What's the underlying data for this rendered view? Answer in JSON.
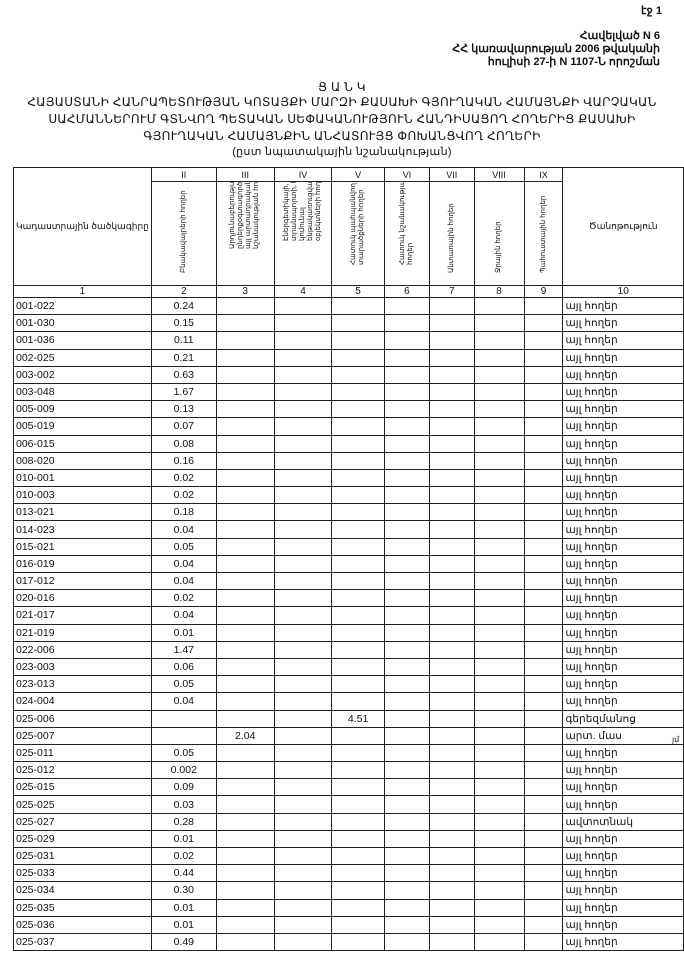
{
  "page_label": "էջ 1",
  "annex": [
    "Հավելված N 6",
    "ՀՀ կառավարության 2006 թվականի",
    "հուլիսի 27-ի N 1107-Ն որոշման"
  ],
  "title": {
    "heading": "Ց Ա Ն Կ",
    "lines": [
      "ՀԱՅԱՍՏԱՆԻ ՀԱՆՐԱՊԵՏՈՒԹՅԱՆ ԿՈՏԱՅՔԻ ՄԱՐԶԻ ՔԱՍԱԽԻ ԳՅՈՒՂԱԿԱՆ ՀԱՄԱՅՆՔԻ ՎԱՐՉԱԿԱՆ",
      "ՍԱՀՄԱՆՆԵՐՈՒՄ ԳՏՆՎՈՂ ՊԵՏԱԿԱՆ ՍԵՓԱԿԱՆՈՒԹՅՈՒՆ ՀԱՆԴԻՍԱՑՈՂ ՀՈՂԵՐԻՑ ՔԱՍԱԽԻ",
      "ԳՅՈՒՂԱԿԱՆ ՀԱՄԱՅՆՔԻՆ ԱՆՀԱՏՈՒՅՑ ՓՈԽԱՆՑՎՈՂ ՀՈՂԵՐԻ"
    ],
    "subtitle": "(ըստ նպատակային նշանակության)"
  },
  "table": {
    "roman": [
      "",
      "II",
      "III",
      "IV",
      "V",
      "VI",
      "VII",
      "VIII",
      "IX",
      ""
    ],
    "headers": [
      "Կադաստրային ծածկագիրը",
      "Բնակավայրերի հողեր",
      "Արդյունաբերության, ընդերքօգտագործման և այլ արտադրական նշանակության հողեր",
      "Էներգետիկայի, տրանսպորտի, կապի, կոմունալ ենթակառուցվածքների օբյեկտների հողեր",
      "Հատուկ պահպանվող տարածքների հողեր",
      "Հատուկ նշանակության հողեր",
      "Անտառային հողեր",
      "Ջրային հողեր",
      "Պահուստային հողեր",
      "Ծանոթություն"
    ],
    "numbers": [
      "1",
      "2",
      "3",
      "4",
      "5",
      "6",
      "7",
      "8",
      "9",
      "10"
    ],
    "rows": [
      [
        "001-022",
        "0.24",
        "",
        "",
        "",
        "",
        "",
        "",
        "",
        "այլ հողեր"
      ],
      [
        "001-030",
        "0.15",
        "",
        "",
        "",
        "",
        "",
        "",
        "",
        "այլ հողեր"
      ],
      [
        "001-036",
        "0.11",
        "",
        "",
        "",
        "",
        "",
        "",
        "",
        "այլ հողեր"
      ],
      [
        "002-025",
        "0.21",
        "",
        "",
        "",
        "",
        "",
        "",
        "",
        "այլ հողեր"
      ],
      [
        "003-002",
        "0.63",
        "",
        "",
        "",
        "",
        "",
        "",
        "",
        "այլ հողեր"
      ],
      [
        "003-048",
        "1.67",
        "",
        "",
        "",
        "",
        "",
        "",
        "",
        "այլ հողեր"
      ],
      [
        "005-009",
        "0.13",
        "",
        "",
        "",
        "",
        "",
        "",
        "",
        "այլ հողեր"
      ],
      [
        "005-019",
        "0.07",
        "",
        "",
        "",
        "",
        "",
        "",
        "",
        "այլ հողեր"
      ],
      [
        "006-015",
        "0.08",
        "",
        "",
        "",
        "",
        "",
        "",
        "",
        "այլ հողեր"
      ],
      [
        "008-020",
        "0.16",
        "",
        "",
        "",
        "",
        "",
        "",
        "",
        "այլ հողեր"
      ],
      [
        "010-001",
        "0.02",
        "",
        "",
        "",
        "",
        "",
        "",
        "",
        "այլ հողեր"
      ],
      [
        "010-003",
        "0.02",
        "",
        "",
        "",
        "",
        "",
        "",
        "",
        "այլ հողեր"
      ],
      [
        "013-021",
        "0.18",
        "",
        "",
        "",
        "",
        "",
        "",
        "",
        "այլ հողեր"
      ],
      [
        "014-023",
        "0.04",
        "",
        "",
        "",
        "",
        "",
        "",
        "",
        "այլ հողեր"
      ],
      [
        "015-021",
        "0.05",
        "",
        "",
        "",
        "",
        "",
        "",
        "",
        "այլ հողեր"
      ],
      [
        "016-019",
        "0.04",
        "",
        "",
        "",
        "",
        "",
        "",
        "",
        "այլ հողեր"
      ],
      [
        "017-012",
        "0.04",
        "",
        "",
        "",
        "",
        "",
        "",
        "",
        "այլ հողեր"
      ],
      [
        "020-016",
        "0.02",
        "",
        "",
        "",
        "",
        "",
        "",
        "",
        "այլ հողեր"
      ],
      [
        "021-017",
        "0.04",
        "",
        "",
        "",
        "",
        "",
        "",
        "",
        "այլ հողեր"
      ],
      [
        "021-019",
        "0.01",
        "",
        "",
        "",
        "",
        "",
        "",
        "",
        "այլ հողեր"
      ],
      [
        "022-006",
        "1.47",
        "",
        "",
        "",
        "",
        "",
        "",
        "",
        "այլ հողեր"
      ],
      [
        "023-003",
        "0.06",
        "",
        "",
        "",
        "",
        "",
        "",
        "",
        "այլ հողեր"
      ],
      [
        "023-013",
        "0.05",
        "",
        "",
        "",
        "",
        "",
        "",
        "",
        "այլ հողեր"
      ],
      [
        "024-004",
        "0.04",
        "",
        "",
        "",
        "",
        "",
        "",
        "",
        "այլ հողեր"
      ],
      [
        "025-006",
        "",
        "",
        "",
        "4.51",
        "",
        "",
        "",
        "",
        "գերեզմանոց"
      ],
      [
        "025-007",
        "",
        "2.04",
        "",
        "",
        "",
        "",
        "",
        "",
        "արտ. մաս"
      ],
      [
        "025-011",
        "0.05",
        "",
        "",
        "",
        "",
        "",
        "",
        "",
        "այլ հողեր"
      ],
      [
        "025-012",
        "0.002",
        "",
        "",
        "",
        "",
        "",
        "",
        "",
        "այլ հողեր"
      ],
      [
        "025-015",
        "0.09",
        "",
        "",
        "",
        "",
        "",
        "",
        "",
        "այլ հողեր"
      ],
      [
        "025-025",
        "0.03",
        "",
        "",
        "",
        "",
        "",
        "",
        "",
        "այլ հողեր"
      ],
      [
        "025-027",
        "0.28",
        "",
        "",
        "",
        "",
        "",
        "",
        "",
        "ավտոտնակ"
      ],
      [
        "025-029",
        "0.01",
        "",
        "",
        "",
        "",
        "",
        "",
        "",
        "այլ հողեր"
      ],
      [
        "025-031",
        "0.02",
        "",
        "",
        "",
        "",
        "",
        "",
        "",
        "այլ հողեր"
      ],
      [
        "025-033",
        "0.44",
        "",
        "",
        "",
        "",
        "",
        "",
        "",
        "այլ հողեր"
      ],
      [
        "025-034",
        "0.30",
        "",
        "",
        "",
        "",
        "",
        "",
        "",
        "այլ հողեր"
      ],
      [
        "025-035",
        "0.01",
        "",
        "",
        "",
        "",
        "",
        "",
        "",
        "այլ հողեր"
      ],
      [
        "025-036",
        "0.01",
        "",
        "",
        "",
        "",
        "",
        "",
        "",
        "այլ հողեր"
      ],
      [
        "025-037",
        "0.49",
        "",
        "",
        "",
        "",
        "",
        "",
        "",
        "այլ հողեր"
      ]
    ]
  },
  "margin_mark": "յմ"
}
